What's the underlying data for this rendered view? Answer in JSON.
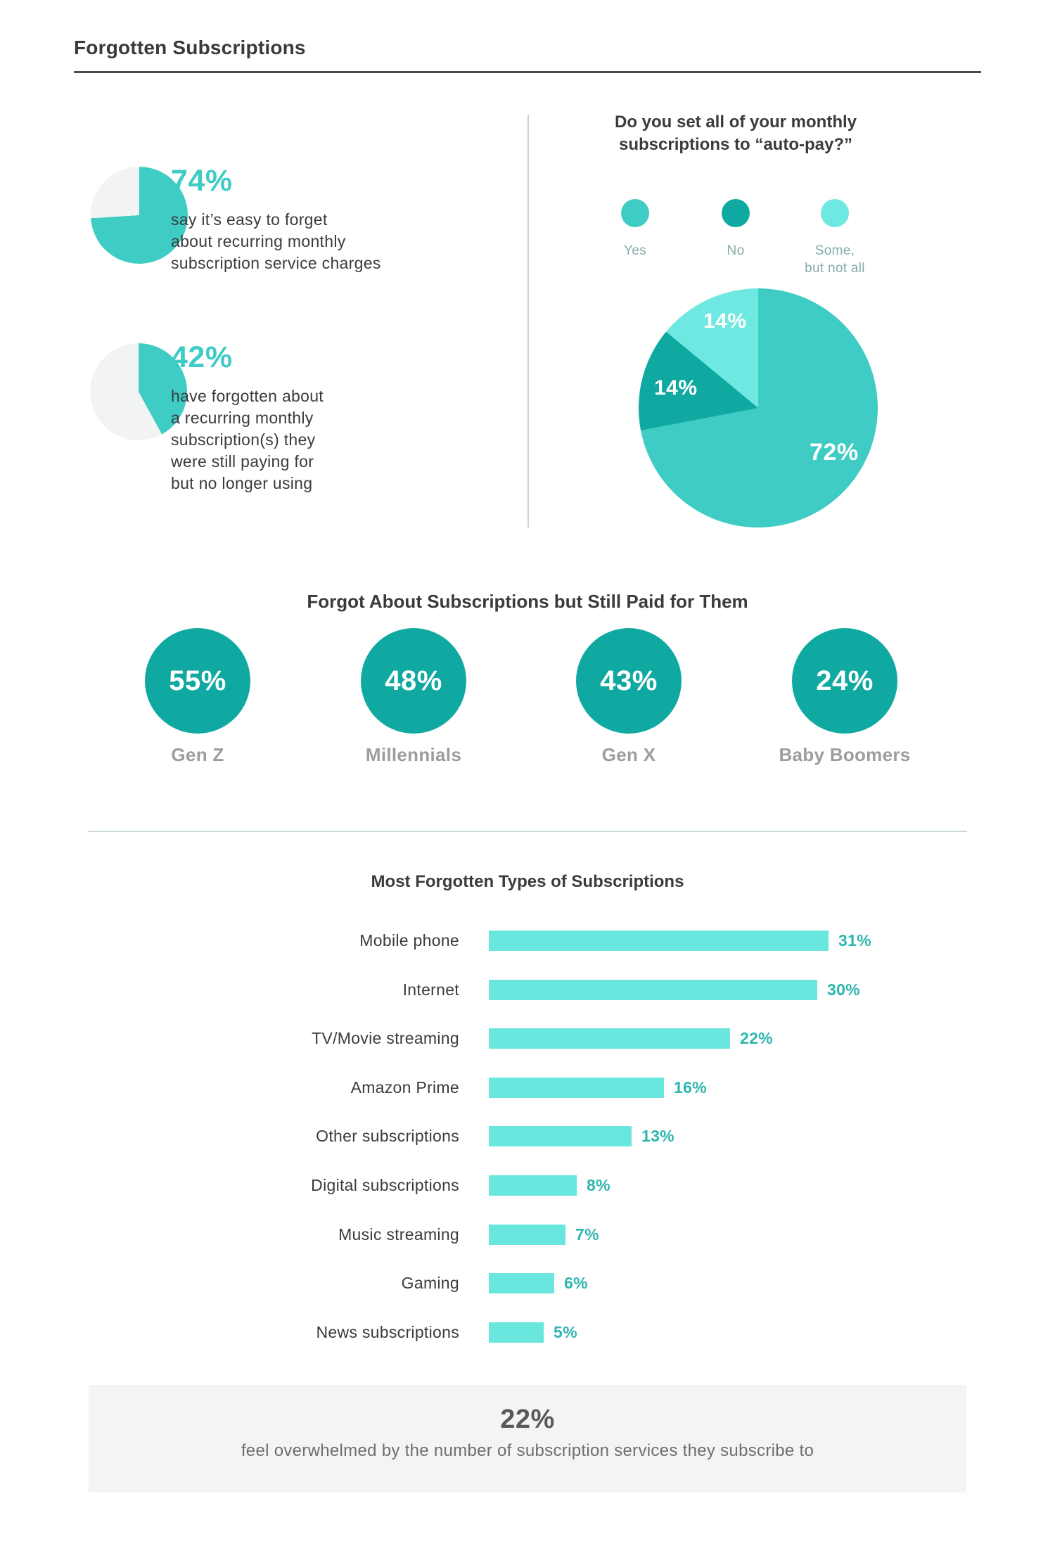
{
  "header": {
    "title": "Forgotten Subscriptions"
  },
  "colors": {
    "accent_teal": "#3ECCC4",
    "deep_teal": "#0FA9A2",
    "light_cyan": "#6FE8E2",
    "bar_cyan": "#69E6DD",
    "value_teal": "#2EB6B0",
    "pie_remainder_gray": "#F2F4F4",
    "heading_dark": "#3B3B3B",
    "generation_label_gray": "#9D9D9D",
    "legend_label_gray": "#85ACA8",
    "footer_bg": "#F3F4F6"
  },
  "stats": [
    {
      "value_label": "74%",
      "lines": [
        "say it’s easy to forget",
        "about recurring monthly",
        "subscription service charges"
      ]
    },
    {
      "value_label": "42%",
      "lines": [
        "have forgotten about",
        "a recurring monthly",
        "subscription(s) they",
        "were still paying for",
        "but no longer using"
      ]
    }
  ],
  "autopay": {
    "title_line1": "Do you set all of your monthly",
    "title_line2": "subscriptions to “auto-pay?”",
    "legend": [
      {
        "label": "Yes",
        "label2": ""
      },
      {
        "label": "No",
        "label2": ""
      },
      {
        "label": "Some,",
        "label2": "but not all"
      }
    ]
  },
  "footer": {
    "value": "22%",
    "text": "feel overwhelmed by the number of subscription services they subscribe to"
  },
  "chart_data": [
    {
      "id": "easy_forget_pie",
      "type": "pie",
      "slices": [
        {
          "label": "say it’s easy to forget about recurring monthly subscription service charges",
          "value": 74,
          "color": "#3ECCC4"
        },
        {
          "label": "remainder",
          "value": 26,
          "color": "#F2F4F4"
        }
      ]
    },
    {
      "id": "forgot_paying_pie",
      "type": "pie",
      "slices": [
        {
          "label": "have forgotten about a recurring monthly subscription(s) they were still paying for but no longer using",
          "value": 42,
          "color": "#3ECCC4"
        },
        {
          "label": "remainder",
          "value": 58,
          "color": "#F2F4F4"
        }
      ]
    },
    {
      "id": "autopay_pie",
      "type": "pie",
      "title": "Do you set all of your monthly subscriptions to “auto-pay?”",
      "slices": [
        {
          "label": "Yes",
          "value": 72,
          "display": "72%",
          "color": "#3ECCC4"
        },
        {
          "label": "No",
          "value": 14,
          "display": "14%",
          "color": "#0FA9A2"
        },
        {
          "label": "Some, but not all",
          "value": 14,
          "display": "14%",
          "color": "#6FE8E2"
        }
      ]
    },
    {
      "id": "generations",
      "type": "stat-circles",
      "title": "Forgot About Subscriptions but Still Paid for Them",
      "categories": [
        "Gen Z",
        "Millennials",
        "Gen X",
        "Baby Boomers"
      ],
      "values": [
        55,
        48,
        43,
        24
      ],
      "value_labels": [
        "55%",
        "48%",
        "43%",
        "24%"
      ],
      "color": "#0FA9A2"
    },
    {
      "id": "most_forgotten_bars",
      "type": "bar",
      "title": "Most Forgotten Types of Subscriptions",
      "orientation": "horizontal",
      "categories": [
        "Mobile phone",
        "Internet",
        "TV/Movie streaming",
        "Amazon Prime",
        "Other subscriptions",
        "Digital subscriptions",
        "Music streaming",
        "Gaming",
        "News subscriptions"
      ],
      "values": [
        31,
        30,
        22,
        16,
        13,
        8,
        7,
        6,
        5
      ],
      "value_labels": [
        "31%",
        "30%",
        "22%",
        "16%",
        "13%",
        "8%",
        "7%",
        "6%",
        "5%"
      ],
      "bar_color": "#69E6DD",
      "value_label_color": "#2EB6B0"
    }
  ]
}
